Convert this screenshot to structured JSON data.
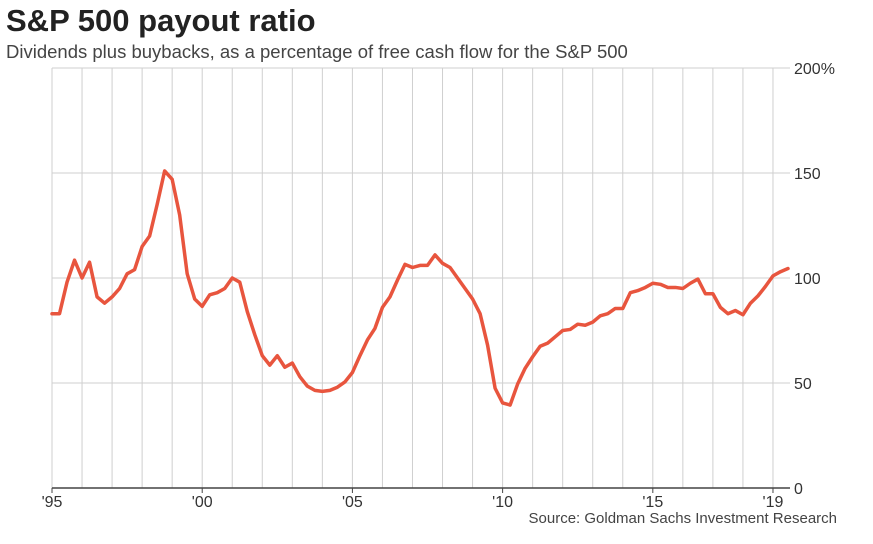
{
  "chart_data": {
    "type": "line",
    "title": "S&P 500 payout ratio",
    "subtitle": "Dividends plus buybacks, as a percentage of free cash flow for the S&P 500",
    "source": "Source: Goldman Sachs Investment Research",
    "x": [
      1995,
      1995.25,
      1995.5,
      1995.75,
      1996,
      1996.25,
      1996.5,
      1996.75,
      1997,
      1997.25,
      1997.5,
      1997.75,
      1998,
      1998.25,
      1998.5,
      1998.75,
      1999,
      1999.25,
      1999.5,
      1999.75,
      2000,
      2000.25,
      2000.5,
      2000.75,
      2001,
      2001.25,
      2001.5,
      2001.75,
      2002,
      2002.25,
      2002.5,
      2002.75,
      2003,
      2003.25,
      2003.5,
      2003.75,
      2004,
      2004.25,
      2004.5,
      2004.75,
      2005,
      2005.25,
      2005.5,
      2005.75,
      2006,
      2006.25,
      2006.5,
      2006.75,
      2007,
      2007.25,
      2007.5,
      2007.75,
      2008,
      2008.25,
      2008.5,
      2008.75,
      2009,
      2009.25,
      2009.5,
      2009.75,
      2010,
      2010.25,
      2010.5,
      2010.75,
      2011,
      2011.25,
      2011.5,
      2011.75,
      2012,
      2012.25,
      2012.5,
      2012.75,
      2013,
      2013.25,
      2013.5,
      2013.75,
      2014,
      2014.25,
      2014.5,
      2014.75,
      2015,
      2015.25,
      2015.5,
      2015.75,
      2016,
      2016.25,
      2016.5,
      2016.75,
      2017,
      2017.25,
      2017.5,
      2017.75,
      2018,
      2018.25,
      2018.5,
      2018.75,
      2019,
      2019.25,
      2019.5
    ],
    "series": [
      {
        "name": "Payout ratio",
        "color": "#e8553e",
        "values": [
          83,
          83,
          98,
          108.5,
          100,
          107.5,
          91,
          88,
          91,
          95,
          102,
          104,
          115,
          120,
          135,
          151,
          147,
          130,
          102,
          90,
          86.5,
          92,
          93,
          95,
          100,
          98,
          84,
          73,
          63,
          58.5,
          63,
          57.5,
          59.5,
          53,
          48.5,
          46.5,
          46,
          46.5,
          48,
          50.5,
          55,
          63,
          70.5,
          76,
          86,
          91,
          99,
          106.5,
          105,
          106,
          106,
          111,
          107,
          105,
          100,
          95,
          90,
          83,
          68,
          47.5,
          40.5,
          39.5,
          49.5,
          57,
          62.5,
          67.5,
          69,
          72,
          75,
          75.5,
          78,
          77.5,
          79,
          82,
          83,
          85.5,
          85.5,
          93,
          94,
          95.5,
          97.5,
          97,
          95.5,
          95.5,
          95,
          97.5,
          99.5,
          92.5,
          92.5,
          86,
          83,
          84.5,
          82.5,
          88,
          91.5,
          96,
          101,
          103,
          104.5
        ]
      }
    ],
    "xlim": [
      1995,
      2019.5
    ],
    "xticks": [
      {
        "value": 1995,
        "label": "'95"
      },
      {
        "value": 2000,
        "label": "'00"
      },
      {
        "value": 2005,
        "label": "'05"
      },
      {
        "value": 2010,
        "label": "'10"
      },
      {
        "value": 2015,
        "label": "'15"
      },
      {
        "value": 2019,
        "label": "'19"
      }
    ],
    "xgrid": [
      1995,
      1996,
      1997,
      1998,
      1999,
      2000,
      2001,
      2002,
      2003,
      2004,
      2005,
      2006,
      2007,
      2008,
      2009,
      2010,
      2011,
      2012,
      2013,
      2014,
      2015,
      2016,
      2017,
      2018,
      2019
    ],
    "ylim": [
      0,
      200
    ],
    "yticks": [
      0,
      50,
      100,
      150,
      {
        "value": 200,
        "label": "200%"
      }
    ],
    "grid": true
  }
}
